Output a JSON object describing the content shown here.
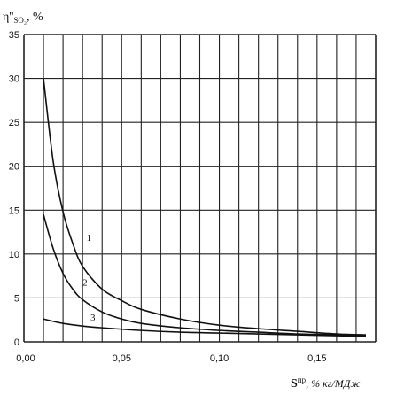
{
  "chart_data": {
    "type": "line",
    "ylabel": {
      "symbol": "η''",
      "sub": "SO₂",
      "unit": ", %"
    },
    "xlabel": {
      "symbol": "S",
      "sup": "пр",
      "unit": ", % кг/МДж"
    },
    "xlim": [
      0,
      0.18
    ],
    "ylim": [
      0,
      35
    ],
    "x_tick_labels": [
      "0,00",
      "0,05",
      "0,10",
      "0,15"
    ],
    "x_tick_values": [
      0,
      0.05,
      0.1,
      0.15
    ],
    "y_tick_labels": [
      "0",
      "5",
      "10",
      "15",
      "20",
      "25",
      "30",
      "35"
    ],
    "y_tick_values": [
      0,
      5,
      10,
      15,
      20,
      25,
      30,
      35
    ],
    "grid": true,
    "series": [
      {
        "name": "1",
        "x": [
          0.01,
          0.015,
          0.02,
          0.025,
          0.03,
          0.04,
          0.05,
          0.06,
          0.08,
          0.1,
          0.12,
          0.14,
          0.16,
          0.175
        ],
        "y": [
          30,
          20.5,
          14.8,
          11.2,
          8.6,
          6.0,
          4.7,
          3.7,
          2.6,
          1.9,
          1.5,
          1.2,
          0.9,
          0.8
        ]
      },
      {
        "name": "2",
        "x": [
          0.01,
          0.015,
          0.02,
          0.025,
          0.03,
          0.04,
          0.05,
          0.06,
          0.08,
          0.1,
          0.12,
          0.14,
          0.16,
          0.175
        ],
        "y": [
          14.5,
          10.6,
          7.8,
          6.0,
          4.8,
          3.4,
          2.6,
          2.1,
          1.6,
          1.3,
          1.1,
          0.9,
          0.8,
          0.7
        ]
      },
      {
        "name": "3",
        "x": [
          0.01,
          0.02,
          0.03,
          0.04,
          0.06,
          0.08,
          0.1,
          0.12,
          0.14,
          0.16,
          0.175
        ],
        "y": [
          2.6,
          2.1,
          1.8,
          1.6,
          1.3,
          1.1,
          1.0,
          0.9,
          0.8,
          0.7,
          0.6
        ]
      }
    ]
  }
}
